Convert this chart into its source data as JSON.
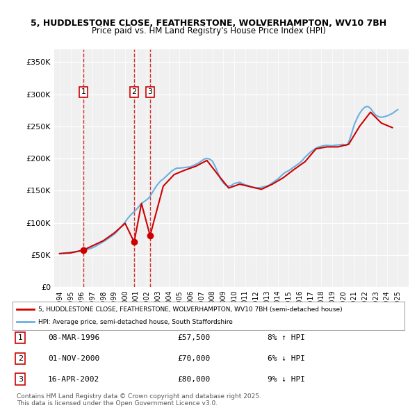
{
  "title_line1": "5, HUDDLESTONE CLOSE, FEATHERSTONE, WOLVERHAMPTON, WV10 7BH",
  "title_line2": "Price paid vs. HM Land Registry's House Price Index (HPI)",
  "legend_label_red": "5, HUDDLESTONE CLOSE, FEATHERSTONE, WOLVERHAMPTON, WV10 7BH (semi-detached house)",
  "legend_label_blue": "HPI: Average price, semi-detached house, South Staffordshire",
  "footer_line1": "Contains HM Land Registry data © Crown copyright and database right 2025.",
  "footer_line2": "This data is licensed under the Open Government Licence v3.0.",
  "transactions": [
    {
      "num": 1,
      "date": "08-MAR-1996",
      "price": 57500,
      "x": 1996.18,
      "pct": "8%",
      "dir": "↑"
    },
    {
      "num": 2,
      "date": "01-NOV-2000",
      "price": 70000,
      "x": 2000.83,
      "pct": "6%",
      "dir": "↓"
    },
    {
      "num": 3,
      "date": "16-APR-2002",
      "price": 80000,
      "x": 2002.29,
      "pct": "9%",
      "dir": "↓"
    }
  ],
  "ylim": [
    0,
    370000
  ],
  "xlim_left": 1993.5,
  "xlim_right": 2026.0,
  "background_color": "#ffffff",
  "plot_bg_color": "#f0f0f0",
  "hpi_color": "#6ab0e0",
  "price_color": "#cc0000",
  "grid_color": "#ffffff",
  "dashed_line_color": "#cc0000",
  "hpi_data_x": [
    1994.0,
    1994.25,
    1994.5,
    1994.75,
    1995.0,
    1995.25,
    1995.5,
    1995.75,
    1996.0,
    1996.25,
    1996.5,
    1996.75,
    1997.0,
    1997.25,
    1997.5,
    1997.75,
    1998.0,
    1998.25,
    1998.5,
    1998.75,
    1999.0,
    1999.25,
    1999.5,
    1999.75,
    2000.0,
    2000.25,
    2000.5,
    2000.75,
    2001.0,
    2001.25,
    2001.5,
    2001.75,
    2002.0,
    2002.25,
    2002.5,
    2002.75,
    2003.0,
    2003.25,
    2003.5,
    2003.75,
    2004.0,
    2004.25,
    2004.5,
    2004.75,
    2005.0,
    2005.25,
    2005.5,
    2005.75,
    2006.0,
    2006.25,
    2006.5,
    2006.75,
    2007.0,
    2007.25,
    2007.5,
    2007.75,
    2008.0,
    2008.25,
    2008.5,
    2008.75,
    2009.0,
    2009.25,
    2009.5,
    2009.75,
    2010.0,
    2010.25,
    2010.5,
    2010.75,
    2011.0,
    2011.25,
    2011.5,
    2011.75,
    2012.0,
    2012.25,
    2012.5,
    2012.75,
    2013.0,
    2013.25,
    2013.5,
    2013.75,
    2014.0,
    2014.25,
    2014.5,
    2014.75,
    2015.0,
    2015.25,
    2015.5,
    2015.75,
    2016.0,
    2016.25,
    2016.5,
    2016.75,
    2017.0,
    2017.25,
    2017.5,
    2017.75,
    2018.0,
    2018.25,
    2018.5,
    2018.75,
    2019.0,
    2019.25,
    2019.5,
    2019.75,
    2020.0,
    2020.25,
    2020.5,
    2020.75,
    2021.0,
    2021.25,
    2021.5,
    2021.75,
    2022.0,
    2022.25,
    2022.5,
    2022.75,
    2023.0,
    2023.25,
    2023.5,
    2023.75,
    2024.0,
    2024.25,
    2024.5,
    2024.75,
    2025.0
  ],
  "hpi_data_y": [
    52000,
    52500,
    53000,
    53500,
    54000,
    54500,
    55000,
    55500,
    56000,
    57000,
    58000,
    59500,
    61000,
    63000,
    65500,
    68000,
    70500,
    73000,
    76000,
    79000,
    82000,
    86000,
    91000,
    96000,
    101000,
    107000,
    112000,
    116000,
    120000,
    125000,
    130000,
    133000,
    136000,
    140000,
    147000,
    154000,
    160000,
    165000,
    168000,
    172000,
    176000,
    180000,
    183000,
    185000,
    185000,
    185500,
    186000,
    186500,
    187000,
    189000,
    191000,
    193000,
    196000,
    199000,
    200000,
    199000,
    196000,
    188000,
    178000,
    168000,
    162000,
    158000,
    157000,
    158000,
    161000,
    162000,
    163000,
    161000,
    159000,
    158000,
    156000,
    155000,
    154000,
    154500,
    155000,
    156000,
    157000,
    159000,
    162000,
    165000,
    168000,
    172000,
    176000,
    179000,
    181000,
    184000,
    187000,
    190000,
    193000,
    197000,
    202000,
    206000,
    210000,
    213000,
    216000,
    218000,
    219000,
    220000,
    220500,
    220000,
    220000,
    220500,
    221000,
    221500,
    222000,
    220000,
    225000,
    238000,
    252000,
    262000,
    270000,
    276000,
    280000,
    281000,
    278000,
    272000,
    267000,
    265000,
    264000,
    265000,
    266000,
    268000,
    270000,
    273000,
    276000
  ],
  "price_data_x": [
    1994.0,
    1995.0,
    1996.18,
    1998.0,
    1999.0,
    2000.0,
    2000.83,
    2001.5,
    2002.29,
    2003.5,
    2004.5,
    2005.5,
    2006.5,
    2007.5,
    2008.5,
    2009.5,
    2010.5,
    2011.5,
    2012.5,
    2013.5,
    2014.5,
    2015.5,
    2016.5,
    2017.5,
    2018.5,
    2019.5,
    2020.5,
    2021.5,
    2022.5,
    2023.5,
    2024.5
  ],
  "price_data_y": [
    52000,
    53000,
    57500,
    72000,
    84000,
    99000,
    70000,
    130000,
    80000,
    157000,
    175000,
    182000,
    188000,
    197000,
    175000,
    154000,
    160000,
    156000,
    152000,
    160000,
    170000,
    183000,
    195000,
    215000,
    218000,
    218000,
    222000,
    250000,
    272000,
    255000,
    248000
  ]
}
